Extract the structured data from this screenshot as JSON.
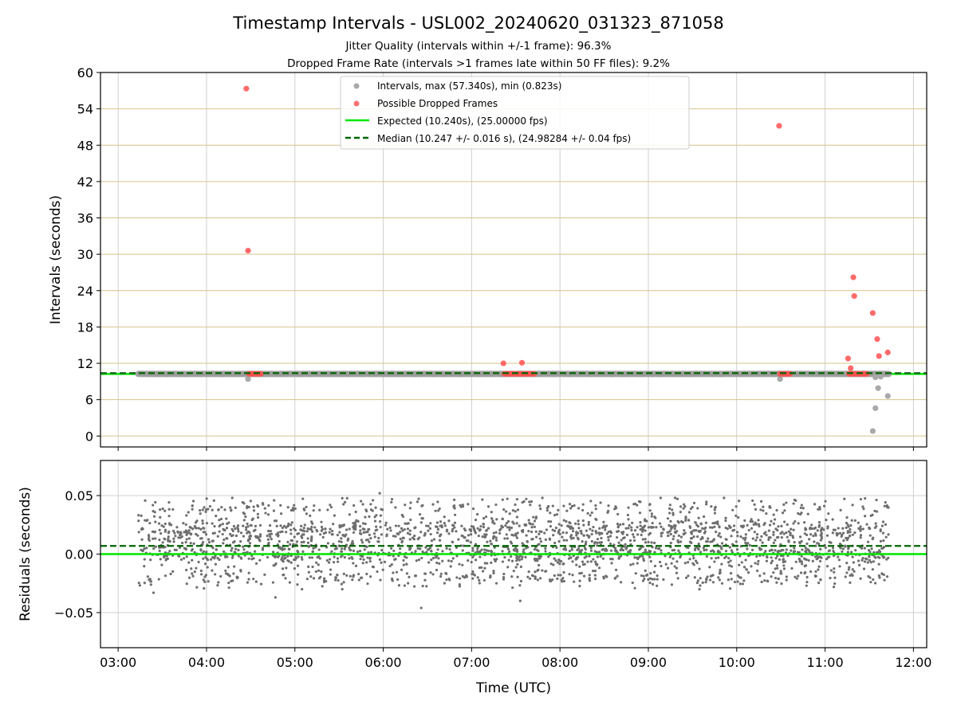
{
  "figure": {
    "title": "Timestamp Intervals - USL002_20240620_031323_871058",
    "subtitle_1": "Jitter Quality (intervals within +/-1 frame): 96.3%",
    "subtitle_2": "Dropped Frame Rate (intervals >1 frames late within 50 FF files): 9.2%"
  },
  "colors": {
    "intervals": "#a9a9a9",
    "dropped": "#ff5050",
    "expected": "#00e600",
    "median": "#006400",
    "residuals": "#6e6e6e",
    "ygrid_top": "#d6c48a",
    "vgrid": "#cfcfcf"
  },
  "chart_data": [
    {
      "type": "scatter",
      "xlabel": "",
      "ylabel": "Intervals (seconds)",
      "x_unit": "hours (UTC)",
      "xlim": [
        2.8,
        12.15
      ],
      "ylim": [
        -1.8,
        60
      ],
      "yticks": [
        0,
        6,
        12,
        18,
        24,
        30,
        36,
        42,
        48,
        54,
        60
      ],
      "ytick_labels": [
        "0",
        "6",
        "12",
        "18",
        "24",
        "30",
        "36",
        "42",
        "48",
        "54",
        "60"
      ],
      "grid": "on",
      "legend_position": "upper-center",
      "legend": [
        "Intervals, max (57.340s), min (0.823s)",
        "Possible Dropped Frames",
        "Expected (10.240s), (25.00000 fps)",
        "Median (10.247 +/- 0.016 s), (24.98284 +/- 0.04 fps)"
      ],
      "expected_value": 10.24,
      "median_value": 10.247,
      "interval_band": {
        "x_start": 3.23,
        "x_end": 11.72,
        "y": 10.24
      },
      "intervals_outliers": [
        {
          "x": 4.47,
          "y": 9.4
        },
        {
          "x": 10.49,
          "y": 9.4
        },
        {
          "x": 11.54,
          "y": 0.823
        },
        {
          "x": 11.57,
          "y": 4.6
        },
        {
          "x": 11.6,
          "y": 7.9
        },
        {
          "x": 11.57,
          "y": 9.7
        },
        {
          "x": 11.63,
          "y": 9.8
        },
        {
          "x": 11.71,
          "y": 6.6
        }
      ],
      "dropped_frames": [
        {
          "x": 4.45,
          "y": 57.34
        },
        {
          "x": 4.47,
          "y": 30.6
        },
        {
          "x": 7.36,
          "y": 12.0
        },
        {
          "x": 7.57,
          "y": 12.1
        },
        {
          "x": 10.48,
          "y": 51.2
        },
        {
          "x": 11.26,
          "y": 12.8
        },
        {
          "x": 11.29,
          "y": 11.2
        },
        {
          "x": 11.32,
          "y": 26.2
        },
        {
          "x": 11.33,
          "y": 23.1
        },
        {
          "x": 11.54,
          "y": 20.3
        },
        {
          "x": 11.59,
          "y": 16.0
        },
        {
          "x": 11.61,
          "y": 13.2
        },
        {
          "x": 11.71,
          "y": 13.8
        }
      ],
      "dropped_clusters": [
        {
          "x_start": 4.48,
          "x_end": 4.62,
          "y": 10.26
        },
        {
          "x_start": 7.37,
          "x_end": 7.72,
          "y": 10.26
        },
        {
          "x_start": 10.49,
          "x_end": 10.61,
          "y": 10.26
        },
        {
          "x_start": 11.27,
          "x_end": 11.48,
          "y": 10.26
        }
      ]
    },
    {
      "type": "scatter",
      "xlabel": "Time (UTC)",
      "ylabel": "Residuals (seconds)",
      "xlim": [
        2.8,
        12.15
      ],
      "ylim": [
        -0.08,
        0.08
      ],
      "xticks": [
        3,
        4,
        5,
        6,
        7,
        8,
        9,
        10,
        11,
        12
      ],
      "xtick_labels": [
        "03:00",
        "04:00",
        "05:00",
        "06:00",
        "07:00",
        "08:00",
        "09:00",
        "10:00",
        "11:00",
        "12:00"
      ],
      "yticks": [
        -0.05,
        0.0,
        0.05
      ],
      "ytick_labels": [
        "−0.05",
        "0.00",
        "0.05"
      ],
      "grid": "on",
      "expected_residual": 0.0,
      "median_residual": 0.007,
      "residual_distribution": {
        "x_start": 3.23,
        "x_end": 11.72,
        "clusters": [
          {
            "center": 0.0,
            "spread": 0.006,
            "weight": 0.35
          },
          {
            "center": 0.02,
            "spread": 0.006,
            "weight": 0.35
          },
          {
            "center": -0.02,
            "spread": 0.004,
            "weight": 0.12
          },
          {
            "center": 0.04,
            "spread": 0.004,
            "weight": 0.1
          },
          {
            "center": 0.01,
            "spread": 0.015,
            "weight": 0.08
          }
        ],
        "extremes": [
          {
            "x": 4.78,
            "y": -0.037
          },
          {
            "x": 6.43,
            "y": -0.046
          },
          {
            "x": 5.96,
            "y": 0.052
          },
          {
            "x": 3.4,
            "y": -0.033
          },
          {
            "x": 7.55,
            "y": -0.04
          }
        ]
      }
    }
  ]
}
